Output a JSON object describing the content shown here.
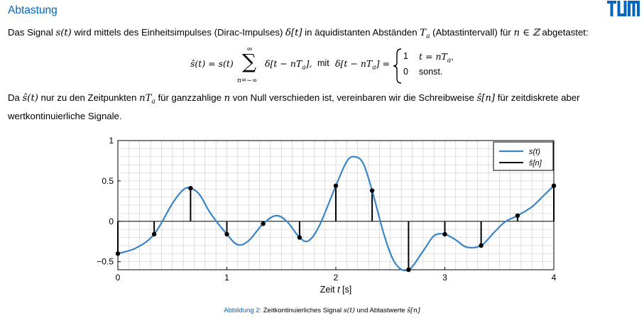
{
  "header": {
    "title": "Abtastung",
    "logo_text": "TUM",
    "brand_color": "#0065bd"
  },
  "intro": {
    "t1": "Das Signal ",
    "s_t": "s(t)",
    "t2": " wird mittels des Einheitsimpulses (Dirac-Impulses) ",
    "delta_t": "δ[t]",
    "t3": " in äquidistanten Abständen ",
    "Ta": "T",
    "Ta_sub": "a",
    "t4": " (Abtastintervall) für ",
    "n_in_Z": "n ∈ ℤ",
    "t5": " abgetastet:"
  },
  "equation": {
    "lhs": "ŝ(t) = s(t)",
    "sum_top": "∞",
    "sum_sym": "∑",
    "sum_bottom": "n=−∞",
    "summand": "δ[t − nT",
    "summand_sub": "a",
    "summand_end": "],",
    "mit": "mit",
    "def_lhs": "δ[t − nT",
    "def_lhs_sub": "a",
    "def_lhs_end": "] =",
    "case1_val": "1",
    "case1_cond": "t = nT",
    "case1_sub": "a",
    "case1_end": ",",
    "case2_val": "0",
    "case2_cond": "sonst."
  },
  "para2": {
    "t1": "Da ",
    "s_hat_t": "ŝ(t)",
    "t2": " nur zu den Zeitpunkten ",
    "nTa": "nT",
    "nTa_sub": "a",
    "t3": " für ganzzahlige ",
    "n": "n",
    "t4": " von Null verschieden ist, vereinbaren wir die Schreibweise ",
    "s_hat_n": "ŝ[n]",
    "t5": " für zeitdiskrete aber",
    "line2": "wertkontinuierliche Signale."
  },
  "chart_data": {
    "type": "line",
    "xlabel_prefix": "Zeit ",
    "xlabel_var": "t",
    "xlabel_unit": " [s]",
    "xlim": [
      0,
      4
    ],
    "ylim": [
      -0.6,
      1.0
    ],
    "xticks": [
      "0",
      "1",
      "2",
      "3",
      "4"
    ],
    "yticks": [
      "1",
      "0.5",
      "0",
      "−0.5"
    ],
    "grid": true,
    "legend_position": "top-right",
    "series": [
      {
        "name": "s(t)",
        "color": "#3a85c6",
        "style": "line",
        "x": [
          0,
          0.167,
          0.333,
          0.5,
          0.6,
          0.667,
          0.75,
          0.85,
          1.0,
          1.1,
          1.2,
          1.333,
          1.45,
          1.55,
          1.667,
          1.75,
          1.85,
          2.0,
          2.1,
          2.17,
          2.25,
          2.333,
          2.45,
          2.55,
          2.667,
          2.8,
          2.9,
          3.0,
          3.1,
          3.2,
          3.333,
          3.45,
          3.55,
          3.667,
          3.8,
          3.9,
          4.0
        ],
        "y": [
          -0.4,
          -0.33,
          -0.16,
          0.22,
          0.39,
          0.41,
          0.33,
          0.1,
          -0.16,
          -0.29,
          -0.24,
          -0.03,
          0.07,
          0.0,
          -0.2,
          -0.24,
          -0.05,
          0.44,
          0.74,
          0.8,
          0.72,
          0.38,
          -0.2,
          -0.53,
          -0.6,
          -0.37,
          -0.18,
          -0.16,
          -0.23,
          -0.32,
          -0.3,
          -0.14,
          -0.01,
          0.07,
          0.18,
          0.31,
          0.44
        ]
      },
      {
        "name": "ŝ[n]",
        "color": "#000000",
        "style": "stem",
        "x": [
          0,
          0.333,
          0.667,
          1.0,
          1.333,
          1.667,
          2.0,
          2.333,
          2.667,
          3.0,
          3.333,
          3.667,
          4.0
        ],
        "y": [
          -0.4,
          -0.16,
          0.41,
          -0.16,
          -0.03,
          -0.2,
          0.44,
          0.38,
          -0.6,
          -0.16,
          -0.3,
          0.07,
          0.44
        ]
      }
    ]
  },
  "caption": {
    "label": "Abbildung 2:",
    "text": "Zeitkontinuierliches Signal ",
    "s_t": "s(t)",
    "and": " und Abtastwerte ",
    "s_hat_n": "ŝ[n]"
  }
}
